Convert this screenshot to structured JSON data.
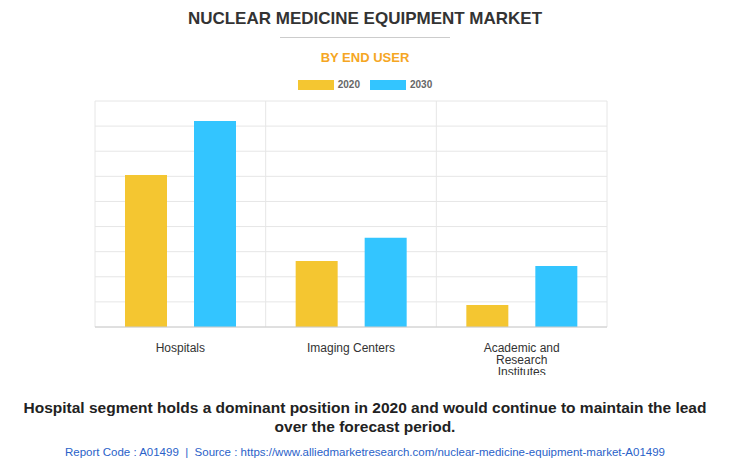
{
  "chart_data": {
    "type": "bar",
    "title": "NUCLEAR MEDICINE EQUIPMENT MARKET",
    "subtitle": "BY END USER",
    "categories": [
      "Hospitals",
      "Imaging Centers",
      "Academic and Research Institutes"
    ],
    "series": [
      {
        "name": "2020",
        "color": "#f4c631",
        "values": [
          6.05,
          2.63,
          0.88
        ]
      },
      {
        "name": "2030",
        "color": "#33c5ff",
        "values": [
          8.2,
          3.55,
          2.43
        ]
      }
    ],
    "ylim": [
      0,
      9
    ],
    "yticks": [
      0,
      1,
      2,
      3,
      4,
      5,
      6,
      7,
      8,
      9
    ],
    "grid": true,
    "tick_labels": "x",
    "legend": "top",
    "caption": "Hospital segment holds a dominant position in 2020 and would continue to maintain the lead over the forecast period.",
    "source_note": "Report Code : A01499  |  Source : https://www.alliedmarketresearch.com/nuclear-medicine-equipment-market-A01499"
  }
}
